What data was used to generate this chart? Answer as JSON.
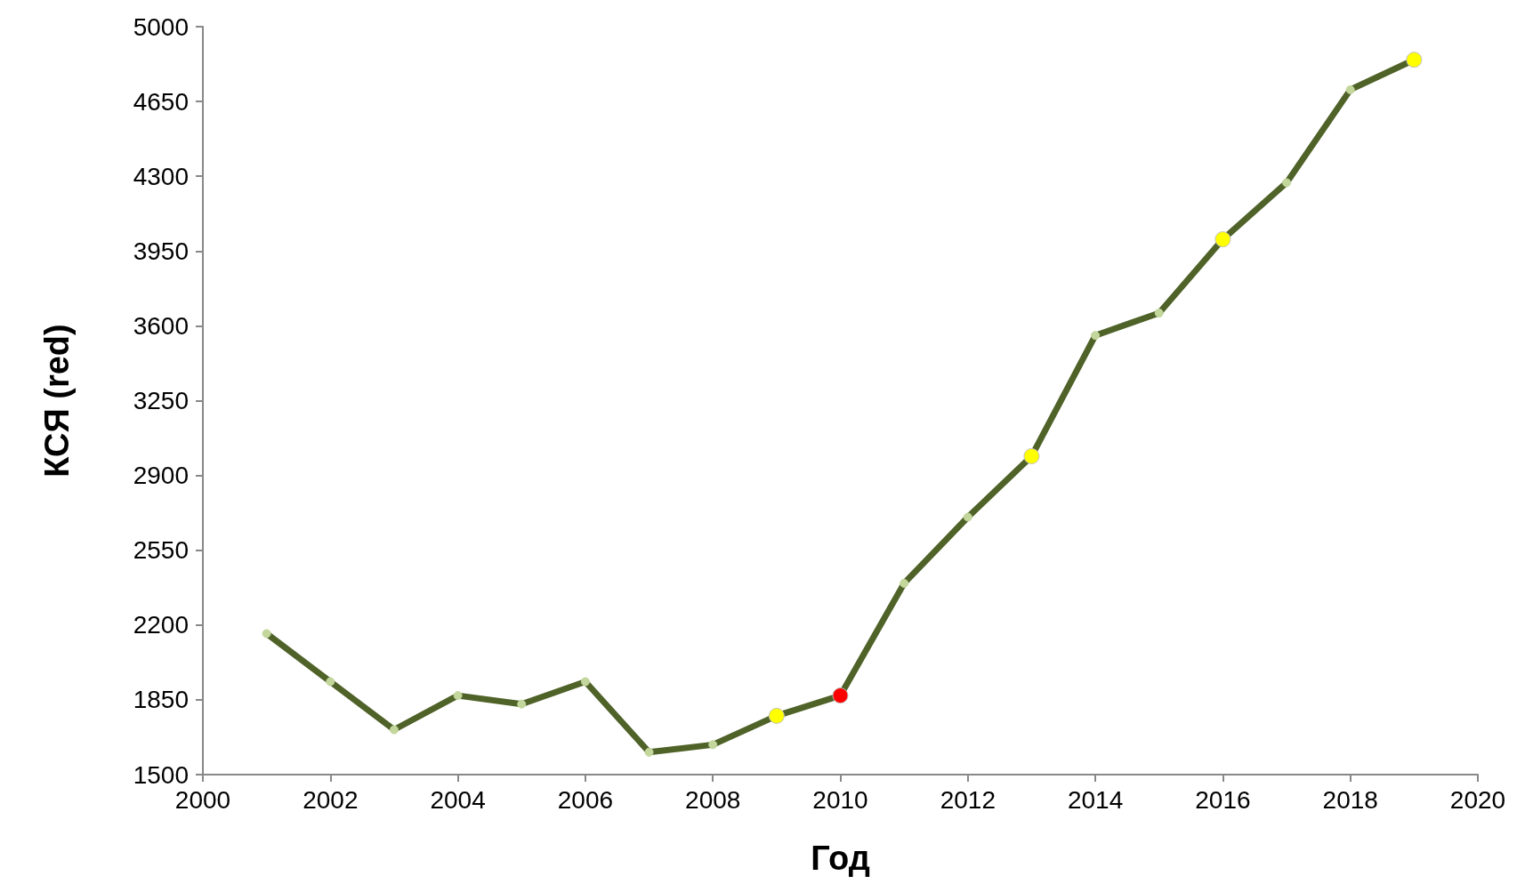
{
  "chart_data": {
    "type": "line",
    "xlabel": "Год",
    "ylabel": "КСЯ (red)",
    "x": [
      2001,
      2002,
      2003,
      2004,
      2005,
      2006,
      2007,
      2008,
      2009,
      2010,
      2011,
      2012,
      2013,
      2014,
      2015,
      2016,
      2017,
      2018,
      2019
    ],
    "series": [
      {
        "color": "#4f6228",
        "values": [
          2160,
          1935,
          1710,
          1870,
          1830,
          1935,
          1605,
          1640,
          1775,
          1870,
          2395,
          2705,
          2990,
          3555,
          3660,
          4005,
          4270,
          4705,
          4845
        ],
        "colors": [
          "#c3d69b",
          "#c3d69b",
          "#c3d69b",
          "#c3d69b",
          "#c3d69b",
          "#c3d69b",
          "#c3d69b",
          "#c3d69b",
          "#ffff00",
          "#ff0000",
          "#c3d69b",
          "#c3d69b",
          "#ffff00",
          "#c3d69b",
          "#c3d69b",
          "#ffff00",
          "#c3d69b",
          "#c3d69b",
          "#ffff00"
        ]
      }
    ],
    "xlim": [
      2000,
      2020
    ],
    "xticks": [
      2000,
      2002,
      2004,
      2006,
      2008,
      2010,
      2012,
      2014,
      2016,
      2018,
      2020
    ],
    "ylim": [
      1500,
      5000
    ],
    "yticks": [
      1500,
      1850,
      2200,
      2550,
      2900,
      3250,
      3600,
      3950,
      4300,
      4650,
      5000
    ],
    "grid": false,
    "marker": "circle",
    "line_style": "solid"
  }
}
